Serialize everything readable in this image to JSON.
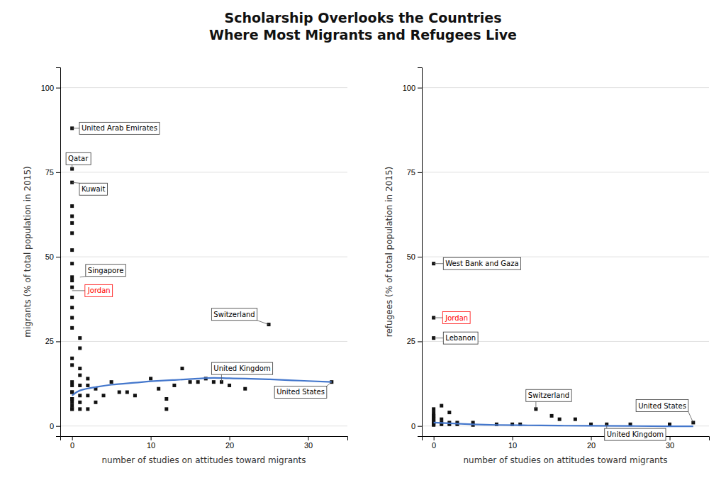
{
  "chart_data": [
    {
      "type": "scatter",
      "title": [
        "Scholarship Overlooks the Countries",
        "Where Most Migrants and Refugees Live"
      ],
      "x_label": "number of studies on attitudes toward migrants",
      "y_label": "migrants (% of total population in 2015)",
      "xlim": [
        -1.5,
        35
      ],
      "ylim": [
        -3,
        106
      ],
      "xticks": [
        0,
        10,
        20,
        30
      ],
      "yticks": [
        0,
        25,
        50,
        75,
        100
      ],
      "grid": true,
      "series": [
        {
          "type": "scatter",
          "color": "#111111",
          "marker": "square",
          "x": [
            0,
            0,
            0,
            0,
            0,
            0,
            0,
            0,
            0,
            0,
            0,
            0,
            0,
            0,
            0,
            0,
            1,
            1,
            0,
            0,
            1,
            1,
            2,
            0,
            0,
            1,
            2,
            3,
            0,
            0,
            1,
            2,
            4,
            0,
            0,
            0,
            1,
            3,
            0,
            0,
            0,
            1,
            2,
            5,
            6,
            7,
            8,
            10,
            11,
            12,
            12,
            13,
            14,
            15,
            16,
            17,
            18,
            19,
            20,
            22,
            25,
            33
          ],
          "values": [
            88,
            76,
            72,
            65,
            62,
            60,
            57,
            52,
            48,
            44,
            43,
            41,
            38,
            35,
            32,
            29,
            26,
            23,
            20,
            18,
            17,
            15,
            14,
            13,
            12,
            12,
            12,
            11,
            10,
            10,
            9,
            9,
            9,
            8,
            8,
            7,
            7,
            7,
            6,
            5,
            5,
            5,
            5,
            13,
            10,
            10,
            9,
            14,
            11,
            8,
            5,
            12,
            17,
            13,
            13,
            14,
            13,
            13,
            12,
            11,
            30,
            13
          ]
        },
        {
          "type": "line",
          "color": "#4477cc",
          "line_style": "solid",
          "x": [
            0,
            1,
            3,
            5,
            8,
            10,
            13,
            16,
            18,
            20,
            22,
            25,
            28,
            30,
            33
          ],
          "values": [
            9.0,
            10.5,
            11.5,
            12.2,
            12.8,
            13.2,
            13.6,
            14.0,
            14.2,
            14.1,
            14.0,
            13.8,
            13.5,
            13.3,
            13.0
          ]
        }
      ],
      "annotations": [
        {
          "text": "United Arab Emirates",
          "x": 0,
          "y": 88,
          "text_x": 1.2,
          "text_y": 88,
          "color": "black"
        },
        {
          "text": "Qatar",
          "x": 0,
          "y": 76,
          "text_x": -0.5,
          "text_y": 79,
          "color": "black"
        },
        {
          "text": "Kuwait",
          "x": 0,
          "y": 72,
          "text_x": 1.2,
          "text_y": 70,
          "color": "black"
        },
        {
          "text": "Singapore",
          "x": 1,
          "y": 44,
          "text_x": 2,
          "text_y": 46,
          "color": "black"
        },
        {
          "text": "Jordan",
          "x": 0,
          "y": 40,
          "text_x": 2,
          "text_y": 40,
          "color": "red"
        },
        {
          "text": "Switzerland",
          "x": 25,
          "y": 30,
          "text_x": 18,
          "text_y": 33,
          "color": "black"
        },
        {
          "text": "United Kingdom",
          "x": 19,
          "y": 13,
          "text_x": 18,
          "text_y": 17,
          "color": "black"
        },
        {
          "text": "United States",
          "x": 33,
          "y": 13,
          "text_x": 26,
          "text_y": 10,
          "color": "black"
        }
      ]
    },
    {
      "type": "scatter",
      "x_label": "number of studies on attitudes toward migrants",
      "y_label": "refugees (% of total population in 2015)",
      "xlim": [
        -1.5,
        35
      ],
      "ylim": [
        -3,
        106
      ],
      "xticks": [
        0,
        10,
        20,
        30
      ],
      "yticks": [
        0,
        25,
        50,
        75,
        100
      ],
      "grid": true,
      "series": [
        {
          "type": "scatter",
          "color": "#111111",
          "marker": "square",
          "x": [
            0,
            0,
            0,
            0,
            0,
            0,
            0,
            0,
            0,
            0,
            0,
            0,
            0,
            1,
            1,
            1,
            1,
            2,
            2,
            2,
            3,
            3,
            5,
            5,
            8,
            10,
            11,
            13,
            15,
            16,
            18,
            20,
            22,
            25,
            30,
            33
          ],
          "values": [
            48,
            32,
            26,
            5,
            4,
            3,
            3,
            2,
            2,
            1,
            1,
            0.5,
            0.3,
            6,
            2,
            1,
            0.5,
            4,
            1,
            0.5,
            1,
            0.5,
            1,
            0.3,
            0.5,
            0.5,
            0.5,
            5,
            3,
            2,
            2,
            0.5,
            0.5,
            0.5,
            0.5,
            1
          ]
        },
        {
          "type": "line",
          "color": "#4477cc",
          "line_style": "solid",
          "x": [
            0,
            2,
            5,
            8,
            12,
            16,
            20,
            25,
            30,
            33
          ],
          "values": [
            1.0,
            0.8,
            0.5,
            0.3,
            0.2,
            0.1,
            0.05,
            0.0,
            -0.1,
            -0.1
          ]
        }
      ],
      "annotations": [
        {
          "text": "West Bank and Gaza",
          "x": 0,
          "y": 48,
          "text_x": 1.5,
          "text_y": 48,
          "color": "black"
        },
        {
          "text": "Jordan",
          "x": 0,
          "y": 32,
          "text_x": 1.5,
          "text_y": 32,
          "color": "red"
        },
        {
          "text": "Lebanon",
          "x": 0,
          "y": 26,
          "text_x": 1.5,
          "text_y": 26,
          "color": "black"
        },
        {
          "text": "Switzerland",
          "x": 13,
          "y": 5,
          "text_x": 12,
          "text_y": 9,
          "color": "black"
        },
        {
          "text": "United States",
          "x": 33,
          "y": 1,
          "text_x": 26,
          "text_y": 6,
          "color": "black"
        },
        {
          "text": "United Kingdom",
          "x": 22,
          "y": 0.5,
          "text_x": 22,
          "text_y": -2.5,
          "color": "black"
        }
      ]
    }
  ]
}
